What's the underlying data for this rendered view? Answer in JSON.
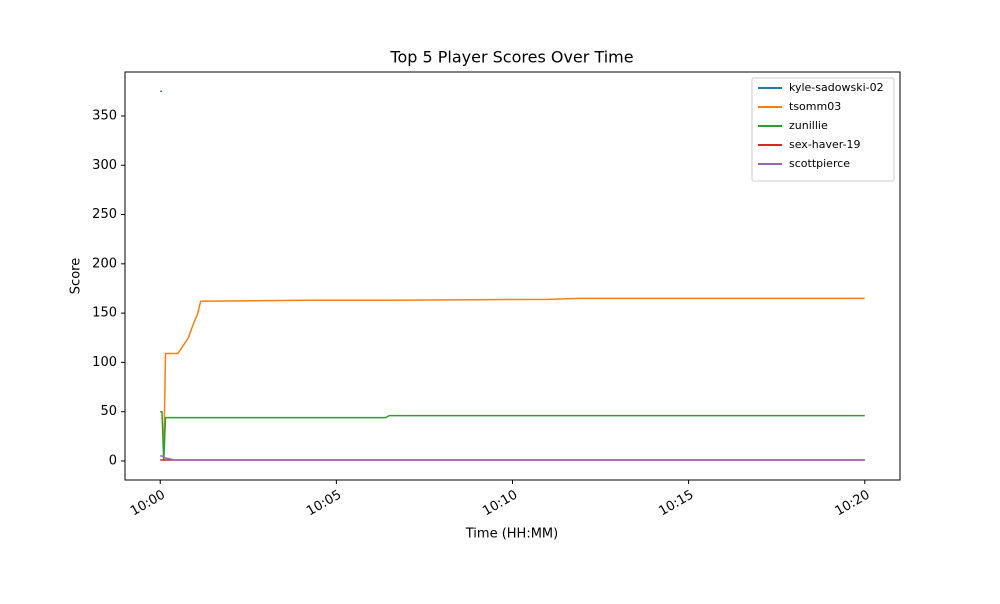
{
  "chart_data": {
    "type": "line",
    "title": "Top 5 Player Scores Over Time",
    "x_label": "Time (HH:MM)",
    "y_label": "Score",
    "x": [
      0,
      0.05,
      0.1,
      0.15,
      0.4,
      0.5,
      0.8,
      0.95,
      1.05,
      1.15,
      4.2,
      6.4,
      6.5,
      11,
      11.9,
      20
    ],
    "series": [
      {
        "name": "kyle-sadowski-02",
        "color": "#1f77b4",
        "values": [
          375,
          375,
          null,
          null,
          null,
          null,
          null,
          null,
          null,
          null,
          null,
          null,
          null,
          null,
          null,
          null
        ]
      },
      {
        "name": "tsomm03",
        "color": "#ff7f0e",
        "values": [
          null,
          null,
          5,
          109,
          109,
          109,
          125,
          140,
          148,
          162,
          163,
          163,
          163,
          164,
          165,
          165
        ]
      },
      {
        "name": "zunillie",
        "color": "#2ca02c",
        "values": [
          50,
          50,
          0,
          44,
          44,
          44,
          44,
          44,
          44,
          44,
          44,
          44,
          46,
          46,
          46,
          46
        ]
      },
      {
        "name": "sex-haver-19",
        "color": "#d62728",
        "values": [
          1,
          1,
          1,
          1,
          1,
          1,
          1,
          1,
          1,
          1,
          1,
          1,
          1,
          1,
          1,
          1
        ]
      },
      {
        "name": "scottpierce",
        "color": "#9467bd",
        "values": [
          5,
          5,
          4,
          3,
          1,
          1,
          1,
          1,
          1,
          1,
          1,
          1,
          1,
          1,
          1,
          1
        ]
      }
    ],
    "xlim": [
      -1.0,
      21.0
    ],
    "xticks": [
      {
        "value": 0,
        "label": "10:00"
      },
      {
        "value": 5,
        "label": "10:05"
      },
      {
        "value": 10,
        "label": "10:10"
      },
      {
        "value": 15,
        "label": "10:15"
      },
      {
        "value": 20,
        "label": "10:20"
      }
    ],
    "ylim": [
      -19.3,
      394.6
    ],
    "yticks": [
      0,
      50,
      100,
      150,
      200,
      250,
      300,
      350
    ],
    "grid": false,
    "legend": "upper-right"
  }
}
